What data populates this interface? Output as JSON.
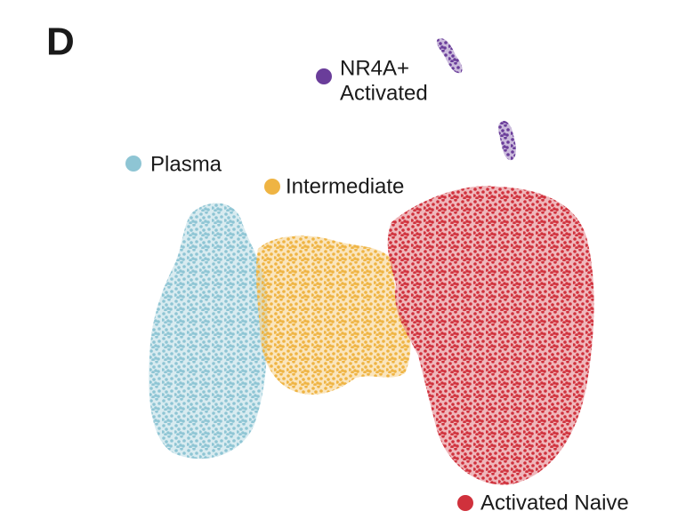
{
  "panel_label": "D",
  "clusters": [
    {
      "name": "NR4A+ Activated",
      "lines": [
        "NR4A+",
        "Activated"
      ],
      "color": "#6a3d9a"
    },
    {
      "name": "Plasma",
      "lines": [
        "Plasma"
      ],
      "color": "#8ec5d4"
    },
    {
      "name": "Intermediate",
      "lines": [
        "Intermediate"
      ],
      "color": "#efb443"
    },
    {
      "name": "Activated Naive",
      "lines": [
        "Activated Naive"
      ],
      "color": "#d0313c"
    }
  ]
}
